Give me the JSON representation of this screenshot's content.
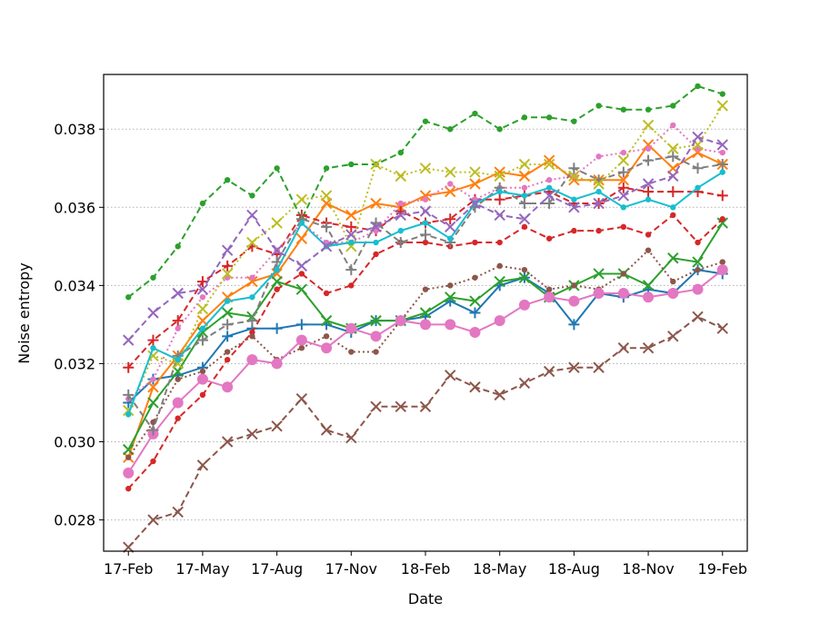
{
  "chart_data": {
    "type": "line",
    "title": "",
    "xlabel": "Date",
    "ylabel": "Noise entropy",
    "x_dates": [
      "2017-02",
      "2017-03",
      "2017-04",
      "2017-05",
      "2017-06",
      "2017-07",
      "2017-08",
      "2017-09",
      "2017-10",
      "2017-11",
      "2017-12",
      "2018-01",
      "2018-02",
      "2018-03",
      "2018-04",
      "2018-05",
      "2018-06",
      "2018-07",
      "2018-08",
      "2018-09",
      "2018-10",
      "2018-11",
      "2018-12",
      "2019-01",
      "2019-02"
    ],
    "xticks": [
      {
        "date": "2017-02",
        "label": "17-Feb"
      },
      {
        "date": "2017-05",
        "label": "17-May"
      },
      {
        "date": "2017-08",
        "label": "17-Aug"
      },
      {
        "date": "2017-11",
        "label": "17-Nov"
      },
      {
        "date": "2018-02",
        "label": "18-Feb"
      },
      {
        "date": "2018-05",
        "label": "18-May"
      },
      {
        "date": "2018-08",
        "label": "18-Aug"
      },
      {
        "date": "2018-11",
        "label": "18-Nov"
      },
      {
        "date": "2019-02",
        "label": "19-Feb"
      }
    ],
    "xlim": [
      "2017-01",
      "2019-03"
    ],
    "ylim": [
      0.0272,
      0.0394
    ],
    "yticks": [
      {
        "value": 0.028,
        "label": "0.028"
      },
      {
        "value": 0.03,
        "label": "0.030"
      },
      {
        "value": 0.032,
        "label": "0.032"
      },
      {
        "value": 0.034,
        "label": "0.034"
      },
      {
        "value": 0.036,
        "label": "0.036"
      },
      {
        "value": 0.038,
        "label": "0.038"
      }
    ],
    "grid": "horizontal-dotted",
    "legend": "none",
    "series": [
      {
        "color": "#1f77b4",
        "dash": "solid",
        "marker": "plus",
        "values": [
          0.031,
          0.0316,
          0.0317,
          0.0319,
          0.0327,
          0.0329,
          0.0329,
          0.033,
          0.033,
          0.0328,
          0.0331,
          0.0331,
          0.0332,
          0.0336,
          0.0333,
          0.034,
          0.0342,
          0.0338,
          0.033,
          0.0338,
          0.0337,
          0.0339,
          0.0338,
          0.0344,
          0.0343
        ]
      },
      {
        "color": "#ff7f0e",
        "dash": "solid",
        "marker": "x",
        "values": [
          0.0296,
          0.0314,
          0.0322,
          0.0331,
          0.0337,
          0.0341,
          0.0343,
          0.0352,
          0.0361,
          0.0358,
          0.0361,
          0.036,
          0.0363,
          0.0364,
          0.0366,
          0.0369,
          0.0368,
          0.0372,
          0.0367,
          0.0367,
          0.0367,
          0.0376,
          0.037,
          0.0374,
          0.0371
        ]
      },
      {
        "color": "#2ca02c",
        "dash": "dashed",
        "marker": "dot",
        "values": [
          0.0337,
          0.0342,
          0.035,
          0.0361,
          0.0367,
          0.0363,
          0.037,
          0.0357,
          0.037,
          0.0371,
          0.0371,
          0.0374,
          0.0382,
          0.038,
          0.0384,
          0.038,
          0.0383,
          0.0383,
          0.0382,
          0.0386,
          0.0385,
          0.0385,
          0.0386,
          0.0391,
          0.0389
        ]
      },
      {
        "color": "#2ca02c",
        "dash": "solid",
        "marker": "x",
        "values": [
          0.0298,
          0.031,
          0.0318,
          0.0328,
          0.0333,
          0.0332,
          0.0341,
          0.0339,
          0.0331,
          0.0329,
          0.0331,
          0.0331,
          0.0333,
          0.0337,
          0.0336,
          0.0341,
          0.0342,
          0.0337,
          0.034,
          0.0343,
          0.0343,
          0.034,
          0.0347,
          0.0346,
          0.0356
        ]
      },
      {
        "color": "#d62728",
        "dash": "dashed",
        "marker": "plus",
        "values": [
          0.0319,
          0.0326,
          0.0331,
          0.0341,
          0.0345,
          0.035,
          0.0348,
          0.0358,
          0.0356,
          0.0355,
          0.0354,
          0.0359,
          0.0356,
          0.0357,
          0.0362,
          0.0362,
          0.0363,
          0.0364,
          0.0361,
          0.0361,
          0.0365,
          0.0364,
          0.0364,
          0.0364,
          0.0363
        ]
      },
      {
        "color": "#d62728",
        "dash": "dashed",
        "marker": "dot",
        "values": [
          0.0288,
          0.0295,
          0.0306,
          0.0312,
          0.0321,
          0.0328,
          0.0339,
          0.0343,
          0.0338,
          0.034,
          0.0348,
          0.0351,
          0.0351,
          0.035,
          0.0351,
          0.0351,
          0.0355,
          0.0352,
          0.0354,
          0.0354,
          0.0355,
          0.0353,
          0.0358,
          0.0351,
          0.0357
        ]
      },
      {
        "color": "#8c564b",
        "dash": "dashed",
        "marker": "x",
        "values": [
          0.0273,
          0.028,
          0.0282,
          0.0294,
          0.03,
          0.0302,
          0.0304,
          0.0311,
          0.0303,
          0.0301,
          0.0309,
          0.0309,
          0.0309,
          0.0317,
          0.0314,
          0.0312,
          0.0315,
          0.0318,
          0.0319,
          0.0319,
          0.0324,
          0.0324,
          0.0327,
          0.0332,
          0.0329
        ]
      },
      {
        "color": "#8c564b",
        "dash": "dotted",
        "marker": "dot",
        "values": [
          0.0296,
          0.0305,
          0.0316,
          0.0318,
          0.0323,
          0.0327,
          0.0321,
          0.0324,
          0.0327,
          0.0323,
          0.0323,
          0.0331,
          0.0339,
          0.034,
          0.0342,
          0.0345,
          0.0344,
          0.0339,
          0.034,
          0.0339,
          0.0343,
          0.0349,
          0.0341,
          0.0344,
          0.0346
        ]
      },
      {
        "color": "#e377c2",
        "dash": "solid",
        "marker": "bigdot",
        "values": [
          0.0292,
          0.0302,
          0.031,
          0.0316,
          0.0314,
          0.0321,
          0.032,
          0.0326,
          0.0324,
          0.0329,
          0.0327,
          0.0331,
          0.033,
          0.033,
          0.0328,
          0.0331,
          0.0335,
          0.0337,
          0.0336,
          0.0338,
          0.0338,
          0.0337,
          0.0338,
          0.0339,
          0.0344
        ]
      },
      {
        "color": "#e377c2",
        "dash": "dotted",
        "marker": "dot",
        "values": [
          0.0311,
          0.0316,
          0.0329,
          0.0337,
          0.0342,
          0.0342,
          0.0349,
          0.0356,
          0.0351,
          0.0351,
          0.0354,
          0.0361,
          0.0362,
          0.0366,
          0.0362,
          0.0365,
          0.0365,
          0.0367,
          0.0368,
          0.0373,
          0.0374,
          0.0375,
          0.0381,
          0.0375,
          0.0374
        ]
      },
      {
        "color": "#7f7f7f",
        "dash": "dashed",
        "marker": "plus",
        "values": [
          0.0312,
          0.0303,
          0.0322,
          0.0326,
          0.033,
          0.0331,
          0.0346,
          0.0357,
          0.0355,
          0.0344,
          0.0356,
          0.0351,
          0.0353,
          0.0351,
          0.036,
          0.0365,
          0.0361,
          0.0361,
          0.037,
          0.0367,
          0.0369,
          0.0372,
          0.0373,
          0.037,
          0.0371
        ]
      },
      {
        "color": "#bcbd22",
        "dash": "dotted",
        "marker": "x",
        "values": [
          0.0308,
          0.0322,
          0.032,
          0.0334,
          0.0343,
          0.0351,
          0.0356,
          0.0362,
          0.0363,
          0.035,
          0.0371,
          0.0368,
          0.037,
          0.0369,
          0.0369,
          0.0368,
          0.0371,
          0.0371,
          0.0368,
          0.0366,
          0.0372,
          0.0381,
          0.0375,
          0.0376,
          0.0386
        ]
      },
      {
        "color": "#17becf",
        "dash": "solid",
        "marker": "dot",
        "values": [
          0.0307,
          0.0324,
          0.0321,
          0.0329,
          0.0336,
          0.0337,
          0.0344,
          0.0356,
          0.035,
          0.0351,
          0.0351,
          0.0354,
          0.0356,
          0.0352,
          0.0361,
          0.0364,
          0.0363,
          0.0365,
          0.0362,
          0.0364,
          0.036,
          0.0362,
          0.036,
          0.0365,
          0.0369
        ]
      },
      {
        "color": "#9467bd",
        "dash": "dashed",
        "marker": "x",
        "values": [
          0.0326,
          0.0333,
          0.0338,
          0.0339,
          0.0349,
          0.0358,
          0.0349,
          0.0345,
          0.035,
          0.0353,
          0.0355,
          0.0358,
          0.0359,
          0.0355,
          0.0361,
          0.0358,
          0.0357,
          0.0363,
          0.036,
          0.0361,
          0.0363,
          0.0366,
          0.0368,
          0.0378,
          0.0376
        ]
      }
    ]
  }
}
